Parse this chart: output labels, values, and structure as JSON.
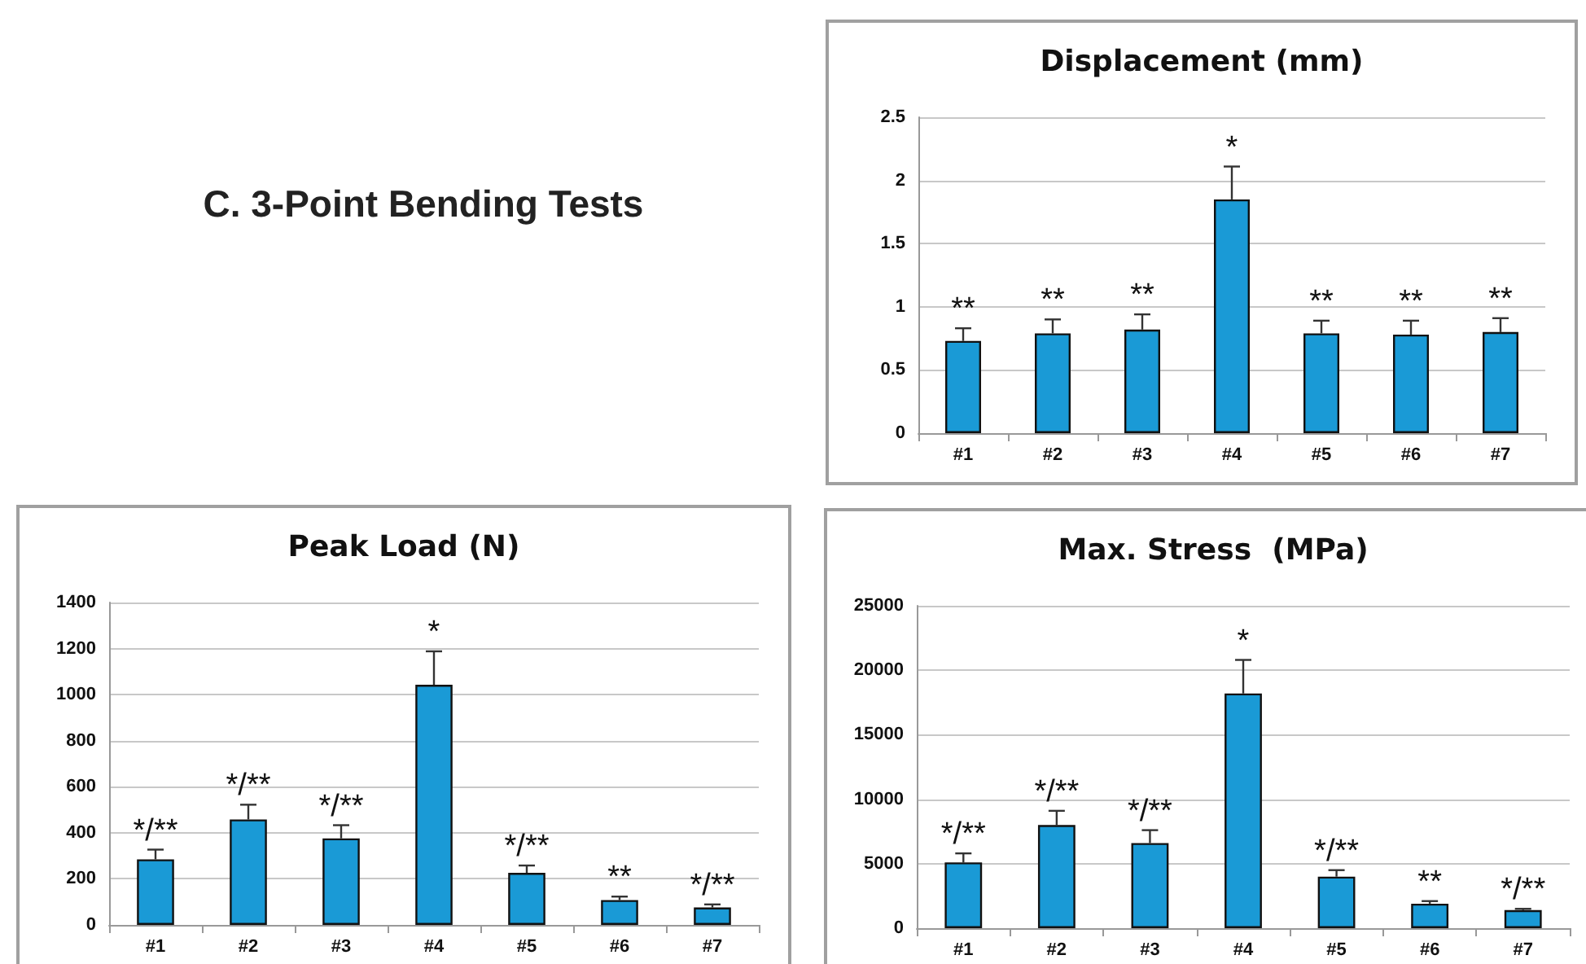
{
  "chart_data": [
    {
      "type": "other",
      "title": "C. 3-Point Bending Tests"
    },
    {
      "type": "bar",
      "title": "Displacement (mm)",
      "categories": [
        "#1",
        "#2",
        "#3",
        "#4",
        "#5",
        "#6",
        "#7"
      ],
      "values": [
        0.73,
        0.79,
        0.82,
        1.85,
        0.79,
        0.78,
        0.8
      ],
      "errors": [
        [
          0.73,
          0.83
        ],
        [
          0.79,
          0.9
        ],
        [
          0.82,
          0.94
        ],
        [
          1.85,
          2.11
        ],
        [
          0.79,
          0.89
        ],
        [
          0.78,
          0.89
        ],
        [
          0.8,
          0.91
        ]
      ],
      "color": "#1a9ad6",
      "ylim": [
        0,
        2.5
      ],
      "yticks": [
        0,
        0.5,
        1,
        1.5,
        2,
        2.5
      ],
      "grid": "y",
      "annotations": [
        {
          "text": "**",
          "x": "#1",
          "y": 0.83
        },
        {
          "text": "**",
          "x": "#2",
          "y": 0.9
        },
        {
          "text": "**",
          "x": "#3",
          "y": 0.94
        },
        {
          "text": "*",
          "x": "#4",
          "y": 2.11
        },
        {
          "text": "**",
          "x": "#5",
          "y": 0.89
        },
        {
          "text": "**",
          "x": "#6",
          "y": 0.89
        },
        {
          "text": "**",
          "x": "#7",
          "y": 0.91
        }
      ]
    },
    {
      "type": "bar",
      "title": "Peak Load (N)",
      "categories": [
        "#1",
        "#2",
        "#3",
        "#4",
        "#5",
        "#6",
        "#7"
      ],
      "values": [
        285,
        458,
        376,
        1043,
        226,
        108,
        76
      ],
      "errors": [
        [
          285,
          327
        ],
        [
          458,
          522
        ],
        [
          376,
          433
        ],
        [
          1043,
          1188
        ],
        [
          226,
          258
        ],
        [
          108,
          123
        ],
        [
          76,
          89
        ]
      ],
      "color": "#1a9ad6",
      "ylim": [
        0,
        1400
      ],
      "yticks": [
        0,
        200,
        400,
        600,
        800,
        1000,
        1200,
        1400
      ],
      "grid": "y",
      "annotations": [
        {
          "text": "*/**",
          "x": "#1",
          "y": 327
        },
        {
          "text": "*/**",
          "x": "#2",
          "y": 522
        },
        {
          "text": "*/**",
          "x": "#3",
          "y": 433
        },
        {
          "text": "*",
          "x": "#4",
          "y": 1188
        },
        {
          "text": "*/**",
          "x": "#5",
          "y": 258
        },
        {
          "text": "**",
          "x": "#6",
          "y": 123
        },
        {
          "text": "*/**",
          "x": "#7",
          "y": 89
        }
      ]
    },
    {
      "type": "bar",
      "title": "Max. Stress  (MPa)",
      "categories": [
        "#1",
        "#2",
        "#3",
        "#4",
        "#5",
        "#6",
        "#7"
      ],
      "values": [
        5100,
        8000,
        6600,
        18200,
        4000,
        1900,
        1400
      ],
      "errors": [
        [
          5100,
          5800
        ],
        [
          8000,
          9100
        ],
        [
          6600,
          7600
        ],
        [
          18200,
          20800
        ],
        [
          4000,
          4500
        ],
        [
          1900,
          2100
        ],
        [
          1400,
          1500
        ]
      ],
      "color": "#1a9ad6",
      "ylim": [
        0,
        25000
      ],
      "yticks": [
        0,
        5000,
        10000,
        15000,
        20000,
        25000
      ],
      "grid": "y",
      "annotations": [
        {
          "text": "*/**",
          "x": "#1",
          "y": 5800
        },
        {
          "text": "*/**",
          "x": "#2",
          "y": 9100
        },
        {
          "text": "*/**",
          "x": "#3",
          "y": 7600
        },
        {
          "text": "*",
          "x": "#4",
          "y": 20800
        },
        {
          "text": "*/**",
          "x": "#5",
          "y": 4500
        },
        {
          "text": "**",
          "x": "#6",
          "y": 2100
        },
        {
          "text": "*/**",
          "x": "#7",
          "y": 1500
        }
      ]
    }
  ]
}
